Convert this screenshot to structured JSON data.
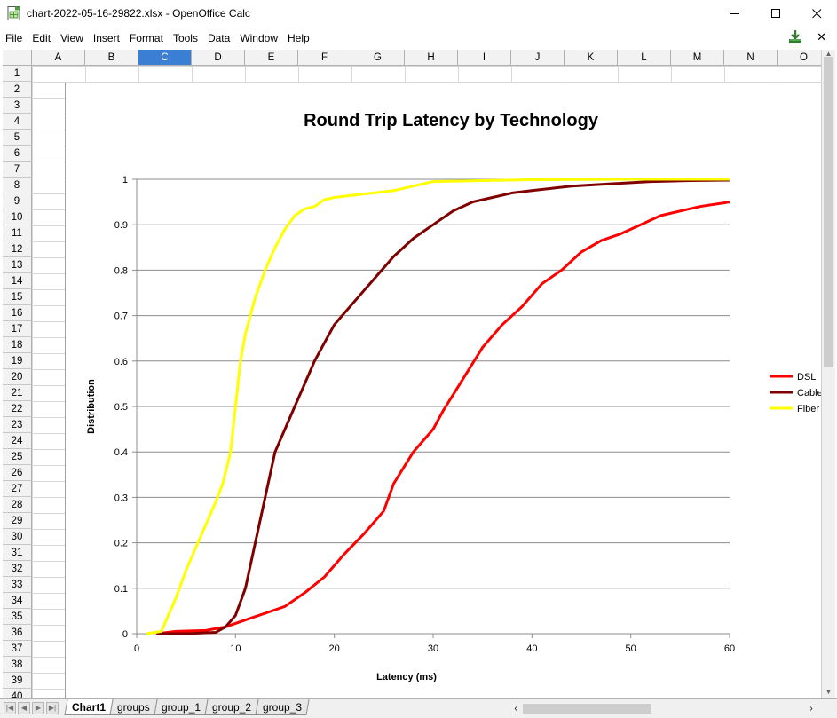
{
  "window": {
    "title": "chart-2022-05-16-29822.xlsx - OpenOffice Calc",
    "minimize": "—",
    "maximize": "☐",
    "close": "✕"
  },
  "menu": [
    {
      "label": "File",
      "ul": "F",
      "rest": "ile"
    },
    {
      "label": "Edit",
      "ul": "E",
      "rest": "dit"
    },
    {
      "label": "View",
      "ul": "V",
      "rest": "iew"
    },
    {
      "label": "Insert",
      "ul": "I",
      "rest": "nsert"
    },
    {
      "label": "Format",
      "ul": "o",
      "pre": "F",
      "rest": "rmat"
    },
    {
      "label": "Tools",
      "ul": "T",
      "rest": "ools"
    },
    {
      "label": "Data",
      "ul": "D",
      "rest": "ata"
    },
    {
      "label": "Window",
      "ul": "W",
      "rest": "indow"
    },
    {
      "label": "Help",
      "ul": "H",
      "rest": "elp"
    }
  ],
  "doc_close": "✕",
  "columns": [
    "A",
    "B",
    "C",
    "D",
    "E",
    "F",
    "G",
    "H",
    "I",
    "J",
    "K",
    "L",
    "M",
    "N",
    "O"
  ],
  "selected_column": "C",
  "rows": [
    "1",
    "2",
    "3",
    "4",
    "5",
    "6",
    "7",
    "8",
    "9",
    "10",
    "11",
    "12",
    "13",
    "14",
    "15",
    "16",
    "17",
    "18",
    "19",
    "20",
    "21",
    "22",
    "23",
    "24",
    "25",
    "26",
    "27",
    "28",
    "29",
    "30",
    "31",
    "32",
    "33",
    "34",
    "35",
    "36",
    "37",
    "38",
    "39",
    "40"
  ],
  "sheet_tabs": [
    {
      "label": "Chart1",
      "active": true
    },
    {
      "label": "groups",
      "active": false
    },
    {
      "label": "group_1",
      "active": false
    },
    {
      "label": "group_2",
      "active": false
    },
    {
      "label": "group_3",
      "active": false
    }
  ],
  "chart_data": {
    "type": "line",
    "title": "Round Trip Latency by Technology",
    "xlabel": "Latency (ms)",
    "ylabel": "Distribution",
    "xlim": [
      0,
      60
    ],
    "ylim": [
      0,
      1
    ],
    "x_ticks": [
      0,
      10,
      20,
      30,
      40,
      50,
      60
    ],
    "y_ticks": [
      0,
      0.1,
      0.2,
      0.3,
      0.4,
      0.5,
      0.6,
      0.7,
      0.8,
      0.9,
      1
    ],
    "y_tick_labels": [
      "0",
      "0.1",
      "0.2",
      "0.3",
      "0.4",
      "0.5",
      "0.6",
      "0.7",
      "0.8",
      "0.9",
      "1"
    ],
    "grid": "horizontal",
    "legend_position": "right",
    "series": [
      {
        "name": "DSL",
        "color": "#ff0000",
        "points": [
          [
            2,
            0
          ],
          [
            4,
            0.005
          ],
          [
            7,
            0.007
          ],
          [
            9,
            0.015
          ],
          [
            11,
            0.03
          ],
          [
            13,
            0.045
          ],
          [
            15,
            0.06
          ],
          [
            17,
            0.09
          ],
          [
            19,
            0.125
          ],
          [
            21,
            0.175
          ],
          [
            23,
            0.22
          ],
          [
            25,
            0.27
          ],
          [
            26,
            0.33
          ],
          [
            28,
            0.4
          ],
          [
            30,
            0.45
          ],
          [
            31,
            0.49
          ],
          [
            33,
            0.56
          ],
          [
            35,
            0.63
          ],
          [
            37,
            0.68
          ],
          [
            39,
            0.72
          ],
          [
            41,
            0.77
          ],
          [
            43,
            0.8
          ],
          [
            45,
            0.84
          ],
          [
            47,
            0.865
          ],
          [
            49,
            0.88
          ],
          [
            51,
            0.9
          ],
          [
            53,
            0.92
          ],
          [
            55,
            0.93
          ],
          [
            57,
            0.94
          ],
          [
            60,
            0.95
          ]
        ]
      },
      {
        "name": "Cable",
        "color": "#800000",
        "points": [
          [
            2,
            0
          ],
          [
            5,
            0
          ],
          [
            8,
            0.003
          ],
          [
            9,
            0.015
          ],
          [
            10,
            0.04
          ],
          [
            11,
            0.1
          ],
          [
            12,
            0.2
          ],
          [
            13,
            0.3
          ],
          [
            14,
            0.4
          ],
          [
            15,
            0.45
          ],
          [
            16,
            0.5
          ],
          [
            17,
            0.55
          ],
          [
            18,
            0.6
          ],
          [
            19,
            0.64
          ],
          [
            20,
            0.68
          ],
          [
            22,
            0.73
          ],
          [
            24,
            0.78
          ],
          [
            26,
            0.83
          ],
          [
            28,
            0.87
          ],
          [
            30,
            0.9
          ],
          [
            32,
            0.93
          ],
          [
            34,
            0.95
          ],
          [
            36,
            0.96
          ],
          [
            38,
            0.97
          ],
          [
            40,
            0.975
          ],
          [
            44,
            0.985
          ],
          [
            48,
            0.99
          ],
          [
            52,
            0.995
          ],
          [
            56,
            0.997
          ],
          [
            60,
            0.998
          ]
        ]
      },
      {
        "name": "Fiber",
        "color": "#ffff00",
        "points": [
          [
            1,
            0
          ],
          [
            2.5,
            0.005
          ],
          [
            3,
            0.03
          ],
          [
            4,
            0.08
          ],
          [
            5,
            0.14
          ],
          [
            6,
            0.19
          ],
          [
            7,
            0.24
          ],
          [
            8,
            0.29
          ],
          [
            8.7,
            0.33
          ],
          [
            9.5,
            0.4
          ],
          [
            10,
            0.5
          ],
          [
            10.5,
            0.6
          ],
          [
            11,
            0.66
          ],
          [
            12,
            0.74
          ],
          [
            13,
            0.8
          ],
          [
            14,
            0.85
          ],
          [
            15,
            0.89
          ],
          [
            16,
            0.92
          ],
          [
            17,
            0.935
          ],
          [
            18,
            0.94
          ],
          [
            19,
            0.955
          ],
          [
            20,
            0.96
          ],
          [
            22,
            0.965
          ],
          [
            24,
            0.97
          ],
          [
            26,
            0.975
          ],
          [
            28,
            0.985
          ],
          [
            30,
            0.995
          ],
          [
            35,
            0.997
          ],
          [
            40,
            0.999
          ],
          [
            50,
            1
          ],
          [
            60,
            1
          ]
        ]
      }
    ]
  }
}
